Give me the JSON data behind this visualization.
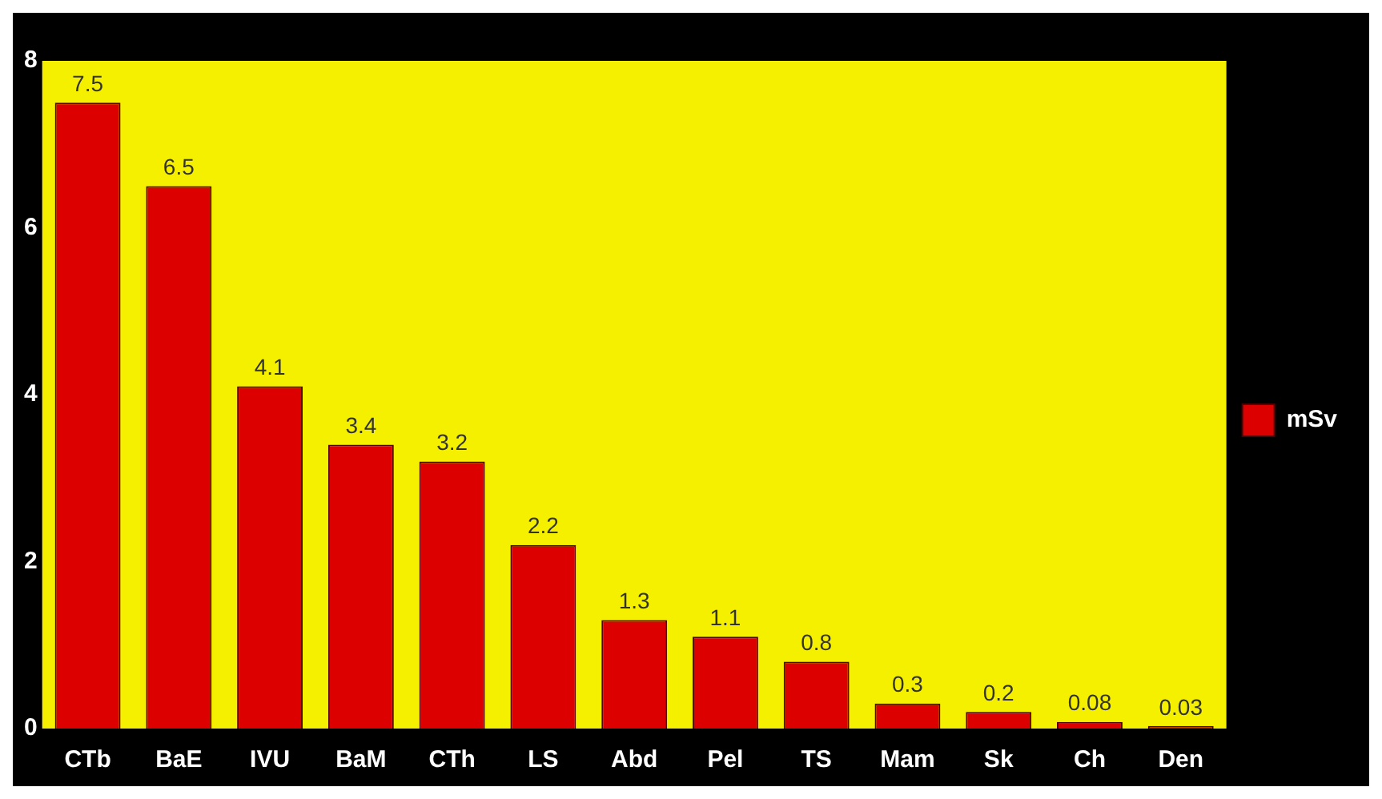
{
  "chart_data": {
    "type": "bar",
    "categories": [
      "CTb",
      "BaE",
      "IVU",
      "BaM",
      "CTh",
      "LS",
      "Abd",
      "Pel",
      "TS",
      "Mam",
      "Sk",
      "Ch",
      "Den"
    ],
    "series": [
      {
        "name": "mSv",
        "color": "#dd0000",
        "values": [
          7.5,
          6.5,
          4.1,
          3.4,
          3.2,
          2.2,
          1.3,
          1.1,
          0.8,
          0.3,
          0.2,
          0.08,
          0.03
        ]
      }
    ],
    "ylim": [
      0,
      8
    ],
    "yticks": [
      0,
      2,
      4,
      6,
      8
    ],
    "grid": false,
    "legend": "right",
    "data_labels": true
  }
}
